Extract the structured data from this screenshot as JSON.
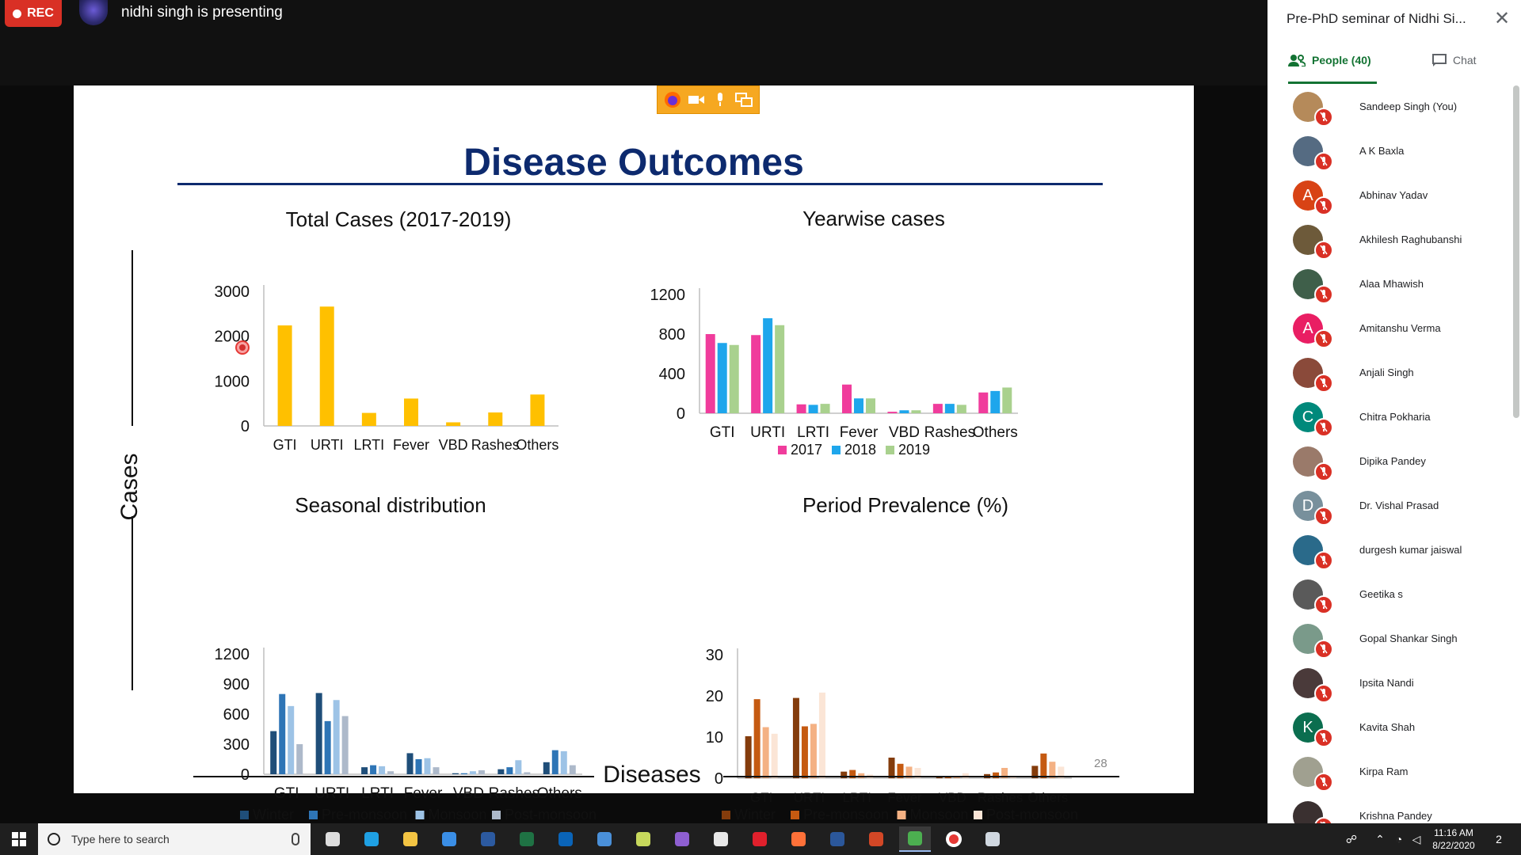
{
  "meeting": {
    "rec_label": "REC",
    "presenter_text": "nidhi singh is presenting"
  },
  "slide": {
    "title": "Disease Outcomes",
    "y_label": "Cases",
    "x_label": "Diseases",
    "page_number": "28"
  },
  "chart_data": [
    {
      "type": "bar",
      "title": "Total Cases (2017-2019)",
      "categories": [
        "GTI",
        "URTI",
        "LRTI",
        "Fever",
        "VBD",
        "Rashes",
        "Others"
      ],
      "values": [
        2240,
        2660,
        290,
        610,
        80,
        300,
        700
      ],
      "ylim": [
        0,
        3000
      ],
      "yticks": [
        "0",
        "1000",
        "2000",
        "3000"
      ],
      "colors": [
        "#ffc000"
      ],
      "legend": []
    },
    {
      "type": "bar",
      "title": "Yearwise cases",
      "categories": [
        "GTI",
        "URTI",
        "LRTI",
        "Fever",
        "VBD",
        "Rashes",
        "Others"
      ],
      "ylim": [
        0,
        1200
      ],
      "yticks": [
        "0",
        "400",
        "800",
        "1200"
      ],
      "series": [
        {
          "name": "2017",
          "color": "#f03c9c",
          "values": [
            800,
            790,
            90,
            290,
            15,
            95,
            210
          ]
        },
        {
          "name": "2018",
          "color": "#1ea6ec",
          "values": [
            710,
            960,
            85,
            150,
            30,
            95,
            225
          ]
        },
        {
          "name": "2019",
          "color": "#a9d18e",
          "values": [
            690,
            890,
            95,
            150,
            30,
            85,
            260
          ]
        }
      ],
      "legend": [
        "2017",
        "2018",
        "2019"
      ]
    },
    {
      "type": "bar",
      "title": "Seasonal distribution",
      "categories": [
        "GTI",
        "URTI",
        "LRTI",
        "Fever",
        "VBD",
        "Rashes",
        "Others"
      ],
      "ylim": [
        0,
        1200
      ],
      "yticks": [
        "0",
        "300",
        "600",
        "900",
        "1200"
      ],
      "series": [
        {
          "name": "Winter",
          "color": "#1f4e79",
          "values": [
            430,
            810,
            70,
            210,
            10,
            50,
            120
          ]
        },
        {
          "name": "Pre-monsoon",
          "color": "#2e75b6",
          "values": [
            800,
            530,
            90,
            150,
            10,
            70,
            240
          ]
        },
        {
          "name": "Monsoon",
          "color": "#9dc3e6",
          "values": [
            680,
            740,
            80,
            160,
            30,
            140,
            230
          ]
        },
        {
          "name": "Post-monsoon",
          "color": "#adb9ca",
          "values": [
            300,
            580,
            30,
            70,
            40,
            20,
            90
          ]
        }
      ],
      "legend": [
        "Winter",
        "Pre-monsoon",
        "Monsoon",
        "Post-monsoon"
      ]
    },
    {
      "type": "bar",
      "title": "Period Prevalence (%)",
      "categories": [
        "GTI",
        "URTI",
        "LRTI",
        "Fever",
        "VBD",
        "Rashes",
        "Others"
      ],
      "ylim": [
        0,
        30
      ],
      "yticks": [
        "0",
        "10",
        "20",
        "30"
      ],
      "series": [
        {
          "name": "Winter",
          "color": "#843c0c",
          "values": [
            10.2,
            19.5,
            1.6,
            5.0,
            0.2,
            1.0,
            3.0
          ]
        },
        {
          "name": "Pre-monsoon",
          "color": "#c55a11",
          "values": [
            19.2,
            12.6,
            2.0,
            3.5,
            0.3,
            1.4,
            6.0
          ]
        },
        {
          "name": "Monsoon",
          "color": "#f4b183",
          "values": [
            12.4,
            13.2,
            1.2,
            2.8,
            0.4,
            2.5,
            4.0
          ]
        },
        {
          "name": "Post-monsoon",
          "color": "#fbe5d6",
          "values": [
            10.8,
            20.8,
            0.9,
            2.5,
            1.2,
            0.6,
            2.8
          ]
        }
      ],
      "legend": [
        "Winter",
        "Pre-monsoon",
        "Monsoon",
        "Post-monsoon"
      ]
    }
  ],
  "panel": {
    "meeting_title": "Pre-PhD seminar of Nidhi Si...",
    "tab_people": "People (40)",
    "tab_chat": "Chat",
    "people": [
      {
        "name": "Sandeep Singh (You)",
        "initial": "",
        "color": "#b58a5a"
      },
      {
        "name": "A K Baxla",
        "initial": "",
        "color": "#556b82"
      },
      {
        "name": "Abhinav Yadav",
        "initial": "A",
        "color": "#d84315"
      },
      {
        "name": "Akhilesh Raghubanshi",
        "initial": "",
        "color": "#6d5a3a"
      },
      {
        "name": "Alaa Mhawish",
        "initial": "",
        "color": "#3f5f4a"
      },
      {
        "name": "Amitanshu Verma",
        "initial": "A",
        "color": "#e91e63"
      },
      {
        "name": "Anjali Singh",
        "initial": "",
        "color": "#8a4a3a"
      },
      {
        "name": "Chitra Pokharia",
        "initial": "C",
        "color": "#00897b"
      },
      {
        "name": "Dipika Pandey",
        "initial": "",
        "color": "#9a7a6a"
      },
      {
        "name": "Dr. Vishal Prasad",
        "initial": "D",
        "color": "#78909c"
      },
      {
        "name": "durgesh kumar jaiswal",
        "initial": "",
        "color": "#2a6a8a"
      },
      {
        "name": "Geetika s",
        "initial": "",
        "color": "#5a5a5a"
      },
      {
        "name": "Gopal Shankar Singh",
        "initial": "",
        "color": "#7a9a8a"
      },
      {
        "name": "Ipsita Nandi",
        "initial": "",
        "color": "#4a3a3a"
      },
      {
        "name": "Kavita Shah",
        "initial": "K",
        "color": "#0b6e4f"
      },
      {
        "name": "Kirpa Ram",
        "initial": "",
        "color": "#a0a090"
      },
      {
        "name": "Krishna Pandey",
        "initial": "",
        "color": "#3a3030"
      }
    ]
  },
  "taskbar": {
    "search_placeholder": "Type here to search",
    "time": "11:16 AM",
    "date": "8/22/2020",
    "notification_count": "2",
    "apps": [
      "task-view",
      "edge",
      "file-explorer",
      "store",
      "photoshop",
      "excel",
      "outlook",
      "r",
      "snipping",
      "visual-studio",
      "app",
      "opera",
      "firefox",
      "word",
      "powerpoint",
      "chrome",
      "recorder",
      "app2"
    ]
  }
}
